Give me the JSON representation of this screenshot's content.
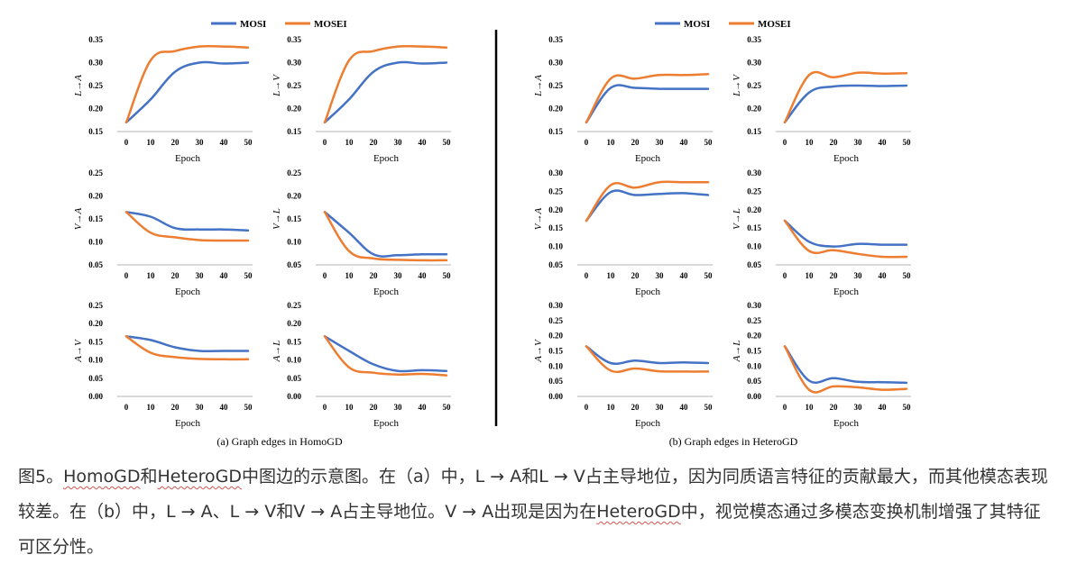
{
  "colors": {
    "MOSI": "#4472c4",
    "MOSEI": "#ed7d31",
    "axis": "#b3b3b3",
    "divider": "#000000"
  },
  "legend": {
    "MOSI": "MOSI",
    "MOSEI": "MOSEI"
  },
  "panel_captions": {
    "a": "(a) Graph edges in HomoGD",
    "b": "(b) Graph edges in HeteroGD"
  },
  "chart_data": [
    {
      "group": "a",
      "type": "line",
      "ylabel": "L→A",
      "xlabel": "Epoch",
      "x": [
        0,
        10,
        20,
        30,
        40,
        50
      ],
      "ylim": [
        0.15,
        0.35
      ],
      "yticks": [
        "0.15",
        "0.20",
        "0.25",
        "0.30",
        "0.35"
      ],
      "series": [
        {
          "name": "MOSI",
          "values": [
            0.17,
            0.22,
            0.28,
            0.3,
            0.298,
            0.3
          ]
        },
        {
          "name": "MOSEI",
          "values": [
            0.17,
            0.305,
            0.325,
            0.335,
            0.335,
            0.333
          ]
        }
      ]
    },
    {
      "group": "a",
      "type": "line",
      "ylabel": "L→V",
      "xlabel": "Epoch",
      "x": [
        0,
        10,
        20,
        30,
        40,
        50
      ],
      "ylim": [
        0.15,
        0.35
      ],
      "yticks": [
        "0.15",
        "0.20",
        "0.25",
        "0.30",
        "0.35"
      ],
      "series": [
        {
          "name": "MOSI",
          "values": [
            0.17,
            0.22,
            0.28,
            0.3,
            0.298,
            0.3
          ]
        },
        {
          "name": "MOSEI",
          "values": [
            0.17,
            0.305,
            0.325,
            0.335,
            0.335,
            0.333
          ]
        }
      ]
    },
    {
      "group": "a",
      "type": "line",
      "ylabel": "V→A",
      "xlabel": "Epoch",
      "x": [
        0,
        10,
        20,
        30,
        40,
        50
      ],
      "ylim": [
        0.05,
        0.25
      ],
      "yticks": [
        "0.05",
        "0.10",
        "0.15",
        "0.20",
        "0.25"
      ],
      "series": [
        {
          "name": "MOSI",
          "values": [
            0.165,
            0.155,
            0.13,
            0.127,
            0.127,
            0.125
          ]
        },
        {
          "name": "MOSEI",
          "values": [
            0.165,
            0.12,
            0.11,
            0.104,
            0.103,
            0.103
          ]
        }
      ]
    },
    {
      "group": "a",
      "type": "line",
      "ylabel": "V→L",
      "xlabel": "Epoch",
      "x": [
        0,
        10,
        20,
        30,
        40,
        50
      ],
      "ylim": [
        0.05,
        0.25
      ],
      "yticks": [
        "0.05",
        "0.10",
        "0.15",
        "0.20",
        "0.25"
      ],
      "series": [
        {
          "name": "MOSI",
          "values": [
            0.165,
            0.12,
            0.073,
            0.071,
            0.073,
            0.073
          ]
        },
        {
          "name": "MOSEI",
          "values": [
            0.165,
            0.08,
            0.064,
            0.061,
            0.06,
            0.06
          ]
        }
      ]
    },
    {
      "group": "a",
      "type": "line",
      "ylabel": "A→V",
      "xlabel": "Epoch",
      "x": [
        0,
        10,
        20,
        30,
        40,
        50
      ],
      "ylim": [
        0.0,
        0.25
      ],
      "yticks": [
        "0.00",
        "0.05",
        "0.10",
        "0.15",
        "0.20",
        "0.25"
      ],
      "series": [
        {
          "name": "MOSI",
          "values": [
            0.165,
            0.155,
            0.135,
            0.125,
            0.125,
            0.125
          ]
        },
        {
          "name": "MOSEI",
          "values": [
            0.165,
            0.12,
            0.108,
            0.103,
            0.102,
            0.102
          ]
        }
      ]
    },
    {
      "group": "a",
      "type": "line",
      "ylabel": "A→L",
      "xlabel": "Epoch",
      "x": [
        0,
        10,
        20,
        30,
        40,
        50
      ],
      "ylim": [
        0.0,
        0.25
      ],
      "yticks": [
        "0.00",
        "0.05",
        "0.10",
        "0.15",
        "0.20",
        "0.25"
      ],
      "series": [
        {
          "name": "MOSI",
          "values": [
            0.165,
            0.125,
            0.088,
            0.07,
            0.072,
            0.07
          ]
        },
        {
          "name": "MOSEI",
          "values": [
            0.165,
            0.08,
            0.065,
            0.06,
            0.062,
            0.058
          ]
        }
      ]
    },
    {
      "group": "b",
      "type": "line",
      "ylabel": "L→A",
      "xlabel": "Epoch",
      "x": [
        0,
        10,
        20,
        30,
        40,
        50
      ],
      "ylim": [
        0.15,
        0.35
      ],
      "yticks": [
        "0.15",
        "0.20",
        "0.25",
        "0.30",
        "0.35"
      ],
      "series": [
        {
          "name": "MOSI",
          "values": [
            0.17,
            0.245,
            0.245,
            0.243,
            0.243,
            0.243
          ]
        },
        {
          "name": "MOSEI",
          "values": [
            0.17,
            0.265,
            0.265,
            0.273,
            0.273,
            0.275
          ]
        }
      ]
    },
    {
      "group": "b",
      "type": "line",
      "ylabel": "L→V",
      "xlabel": "Epoch",
      "x": [
        0,
        10,
        20,
        30,
        40,
        50
      ],
      "ylim": [
        0.15,
        0.35
      ],
      "yticks": [
        "0.15",
        "0.20",
        "0.25",
        "0.30",
        "0.35"
      ],
      "series": [
        {
          "name": "MOSI",
          "values": [
            0.17,
            0.235,
            0.248,
            0.25,
            0.249,
            0.25
          ]
        },
        {
          "name": "MOSEI",
          "values": [
            0.17,
            0.273,
            0.268,
            0.278,
            0.276,
            0.277
          ]
        }
      ]
    },
    {
      "group": "b",
      "type": "line",
      "ylabel": "V→A",
      "xlabel": "Epoch",
      "x": [
        0,
        10,
        20,
        30,
        40,
        50
      ],
      "ylim": [
        0.05,
        0.3
      ],
      "yticks": [
        "0.05",
        "0.10",
        "0.15",
        "0.20",
        "0.25",
        "0.30"
      ],
      "series": [
        {
          "name": "MOSI",
          "values": [
            0.17,
            0.248,
            0.24,
            0.243,
            0.245,
            0.24
          ]
        },
        {
          "name": "MOSEI",
          "values": [
            0.17,
            0.267,
            0.26,
            0.275,
            0.275,
            0.275
          ]
        }
      ]
    },
    {
      "group": "b",
      "type": "line",
      "ylabel": "V→L",
      "xlabel": "Epoch",
      "x": [
        0,
        10,
        20,
        30,
        40,
        50
      ],
      "ylim": [
        0.05,
        0.3
      ],
      "yticks": [
        "0.05",
        "0.10",
        "0.15",
        "0.20",
        "0.25",
        "0.30"
      ],
      "series": [
        {
          "name": "MOSI",
          "values": [
            0.17,
            0.113,
            0.1,
            0.107,
            0.105,
            0.105
          ]
        },
        {
          "name": "MOSEI",
          "values": [
            0.17,
            0.088,
            0.09,
            0.08,
            0.072,
            0.072
          ]
        }
      ]
    },
    {
      "group": "b",
      "type": "line",
      "ylabel": "A→V",
      "xlabel": "Epoch",
      "x": [
        0,
        10,
        20,
        30,
        40,
        50
      ],
      "ylim": [
        0.0,
        0.3
      ],
      "yticks": [
        "0.00",
        "0.05",
        "0.10",
        "0.15",
        "0.20",
        "0.25",
        "0.30"
      ],
      "series": [
        {
          "name": "MOSI",
          "values": [
            0.165,
            0.11,
            0.118,
            0.11,
            0.112,
            0.11
          ]
        },
        {
          "name": "MOSEI",
          "values": [
            0.165,
            0.085,
            0.092,
            0.083,
            0.082,
            0.082
          ]
        }
      ]
    },
    {
      "group": "b",
      "type": "line",
      "ylabel": "A→L",
      "xlabel": "Epoch",
      "x": [
        0,
        10,
        20,
        30,
        40,
        50
      ],
      "ylim": [
        0.0,
        0.3
      ],
      "yticks": [
        "0.00",
        "0.05",
        "0.10",
        "0.15",
        "0.20",
        "0.25",
        "0.30"
      ],
      "series": [
        {
          "name": "MOSI",
          "values": [
            0.165,
            0.052,
            0.06,
            0.048,
            0.047,
            0.045
          ]
        },
        {
          "name": "MOSEI",
          "values": [
            0.165,
            0.022,
            0.033,
            0.03,
            0.022,
            0.025
          ]
        }
      ]
    }
  ],
  "caption": {
    "segments": [
      {
        "text": "图5。",
        "wavy": false
      },
      {
        "text": "HomoGD",
        "wavy": true
      },
      {
        "text": "和",
        "wavy": false
      },
      {
        "text": "HeteroGD",
        "wavy": true
      },
      {
        "text": "中图边的示意图。在（a）中，L → A和L → V占主导地位，因为同质语言特征的贡献最大，而其他模态表现较差。在（b）中，L → A、L → V和V → A占主导地位。V → A出现是因为在",
        "wavy": false
      },
      {
        "text": "HeteroGD",
        "wavy": true
      },
      {
        "text": "中，视觉模态通过多模态变换机制增强了其特征可区分性。",
        "wavy": false
      }
    ]
  }
}
